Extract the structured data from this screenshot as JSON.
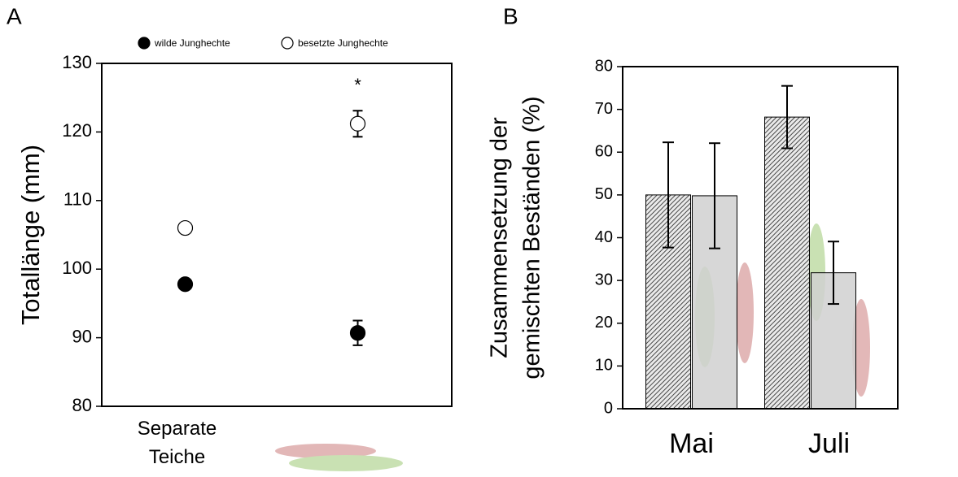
{
  "chart_data": [
    {
      "type": "dot",
      "panel_label": "A",
      "ylabel": "Totallänge (mm)",
      "categories": [
        "Separate Teiche",
        null
      ],
      "series": [
        {
          "name": "wilde Junghechte",
          "color": "#000000",
          "values": [
            97.8,
            90.7
          ],
          "errors": [
            0.4,
            1.8
          ]
        },
        {
          "name": "besetzte Junghechte",
          "color": "#ffffff",
          "values": [
            106,
            121.2
          ],
          "errors": [
            0.5,
            1.9
          ]
        }
      ],
      "annotation": "*",
      "ylim": [
        80,
        130
      ],
      "yticks": [
        80,
        90,
        100,
        110,
        120,
        130
      ],
      "legend": "top"
    },
    {
      "type": "bar",
      "panel_label": "B",
      "ylabel": [
        "Zusammensetzung der",
        "gemischten Beständen (%)"
      ],
      "categories": [
        "Mai",
        "Juli"
      ],
      "series": [
        {
          "color": "#555555",
          "hatch": true,
          "values": [
            50,
            68.2
          ],
          "errors": [
            12.3,
            7.3
          ]
        },
        {
          "color": "#d0d0d0",
          "hatch": false,
          "values": [
            49.8,
            31.8
          ],
          "errors": [
            12.3,
            7.3
          ]
        }
      ],
      "ylim": [
        0,
        80
      ],
      "yticks": [
        0,
        10,
        20,
        30,
        40,
        50,
        60,
        70,
        80
      ]
    }
  ]
}
